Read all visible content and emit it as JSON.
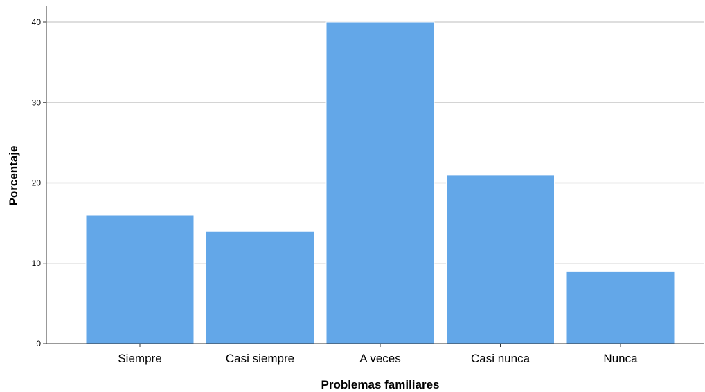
{
  "chart_data": {
    "type": "bar",
    "categories": [
      "Siempre",
      "Casi siempre",
      "A veces",
      "Casi nunca",
      "Nunca"
    ],
    "values": [
      16,
      14,
      40,
      21,
      9
    ],
    "xlabel": "Problemas familiares",
    "ylabel": "Porcentaje",
    "ylim": [
      0,
      42
    ],
    "yticks": [
      0,
      10,
      20,
      30,
      40
    ],
    "grid": true,
    "legend": false,
    "colors": {
      "bar": "#63a7e8",
      "grid": "#d4d4d4",
      "axis": "#333333"
    }
  }
}
